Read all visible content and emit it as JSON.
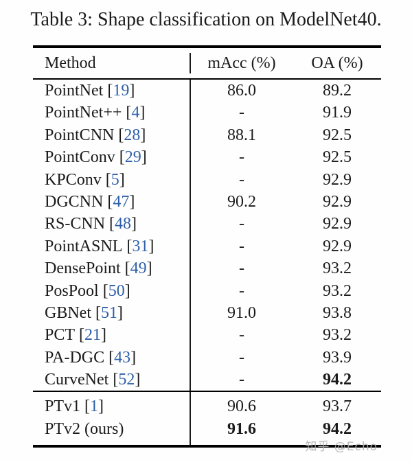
{
  "title": "Table 3: Shape classification on ModelNet40.",
  "colors": {
    "text": "#1a1a1a",
    "citation_blue": "#2e5fa8",
    "rule_black": "#000000",
    "watermark_gray": "#afafaf"
  },
  "watermark": "知乎 @Echo",
  "table": {
    "headers": {
      "method": "Method",
      "macc": "mAcc (%)",
      "oa": "OA (%)"
    },
    "missing_value": "-",
    "rows": [
      {
        "method": "PointNet",
        "cite": "19",
        "macc": "86.0",
        "oa": "89.2",
        "macc_bold": false,
        "oa_bold": false
      },
      {
        "method": "PointNet++",
        "cite": "4",
        "macc": "-",
        "oa": "91.9",
        "macc_bold": false,
        "oa_bold": false
      },
      {
        "method": "PointCNN",
        "cite": "28",
        "macc": "88.1",
        "oa": "92.5",
        "macc_bold": false,
        "oa_bold": false
      },
      {
        "method": "PointConv",
        "cite": "29",
        "macc": "-",
        "oa": "92.5",
        "macc_bold": false,
        "oa_bold": false
      },
      {
        "method": "KPConv",
        "cite": "5",
        "macc": "-",
        "oa": "92.9",
        "macc_bold": false,
        "oa_bold": false
      },
      {
        "method": "DGCNN",
        "cite": "47",
        "macc": "90.2",
        "oa": "92.9",
        "macc_bold": false,
        "oa_bold": false
      },
      {
        "method": "RS-CNN",
        "cite": "48",
        "macc": "-",
        "oa": "92.9",
        "macc_bold": false,
        "oa_bold": false
      },
      {
        "method": "PointASNL",
        "cite": "31",
        "macc": "-",
        "oa": "92.9",
        "macc_bold": false,
        "oa_bold": false
      },
      {
        "method": "DensePoint",
        "cite": "49",
        "macc": "-",
        "oa": "93.2",
        "macc_bold": false,
        "oa_bold": false
      },
      {
        "method": "PosPool",
        "cite": "50",
        "macc": "-",
        "oa": "93.2",
        "macc_bold": false,
        "oa_bold": false
      },
      {
        "method": "GBNet",
        "cite": "51",
        "macc": "91.0",
        "oa": "93.8",
        "macc_bold": false,
        "oa_bold": false
      },
      {
        "method": "PCT",
        "cite": "21",
        "macc": "-",
        "oa": "93.2",
        "macc_bold": false,
        "oa_bold": false
      },
      {
        "method": "PA-DGC",
        "cite": "43",
        "macc": "-",
        "oa": "93.9",
        "macc_bold": false,
        "oa_bold": false
      },
      {
        "method": "CurveNet",
        "cite": "52",
        "macc": "-",
        "oa": "94.2",
        "macc_bold": false,
        "oa_bold": true
      }
    ],
    "bottom_rows": [
      {
        "method": "PTv1",
        "cite": "1",
        "macc": "90.6",
        "oa": "93.7",
        "macc_bold": false,
        "oa_bold": false
      },
      {
        "method": "PTv2 (ours)",
        "cite": "",
        "macc": "91.6",
        "oa": "94.2",
        "macc_bold": true,
        "oa_bold": true
      }
    ]
  }
}
